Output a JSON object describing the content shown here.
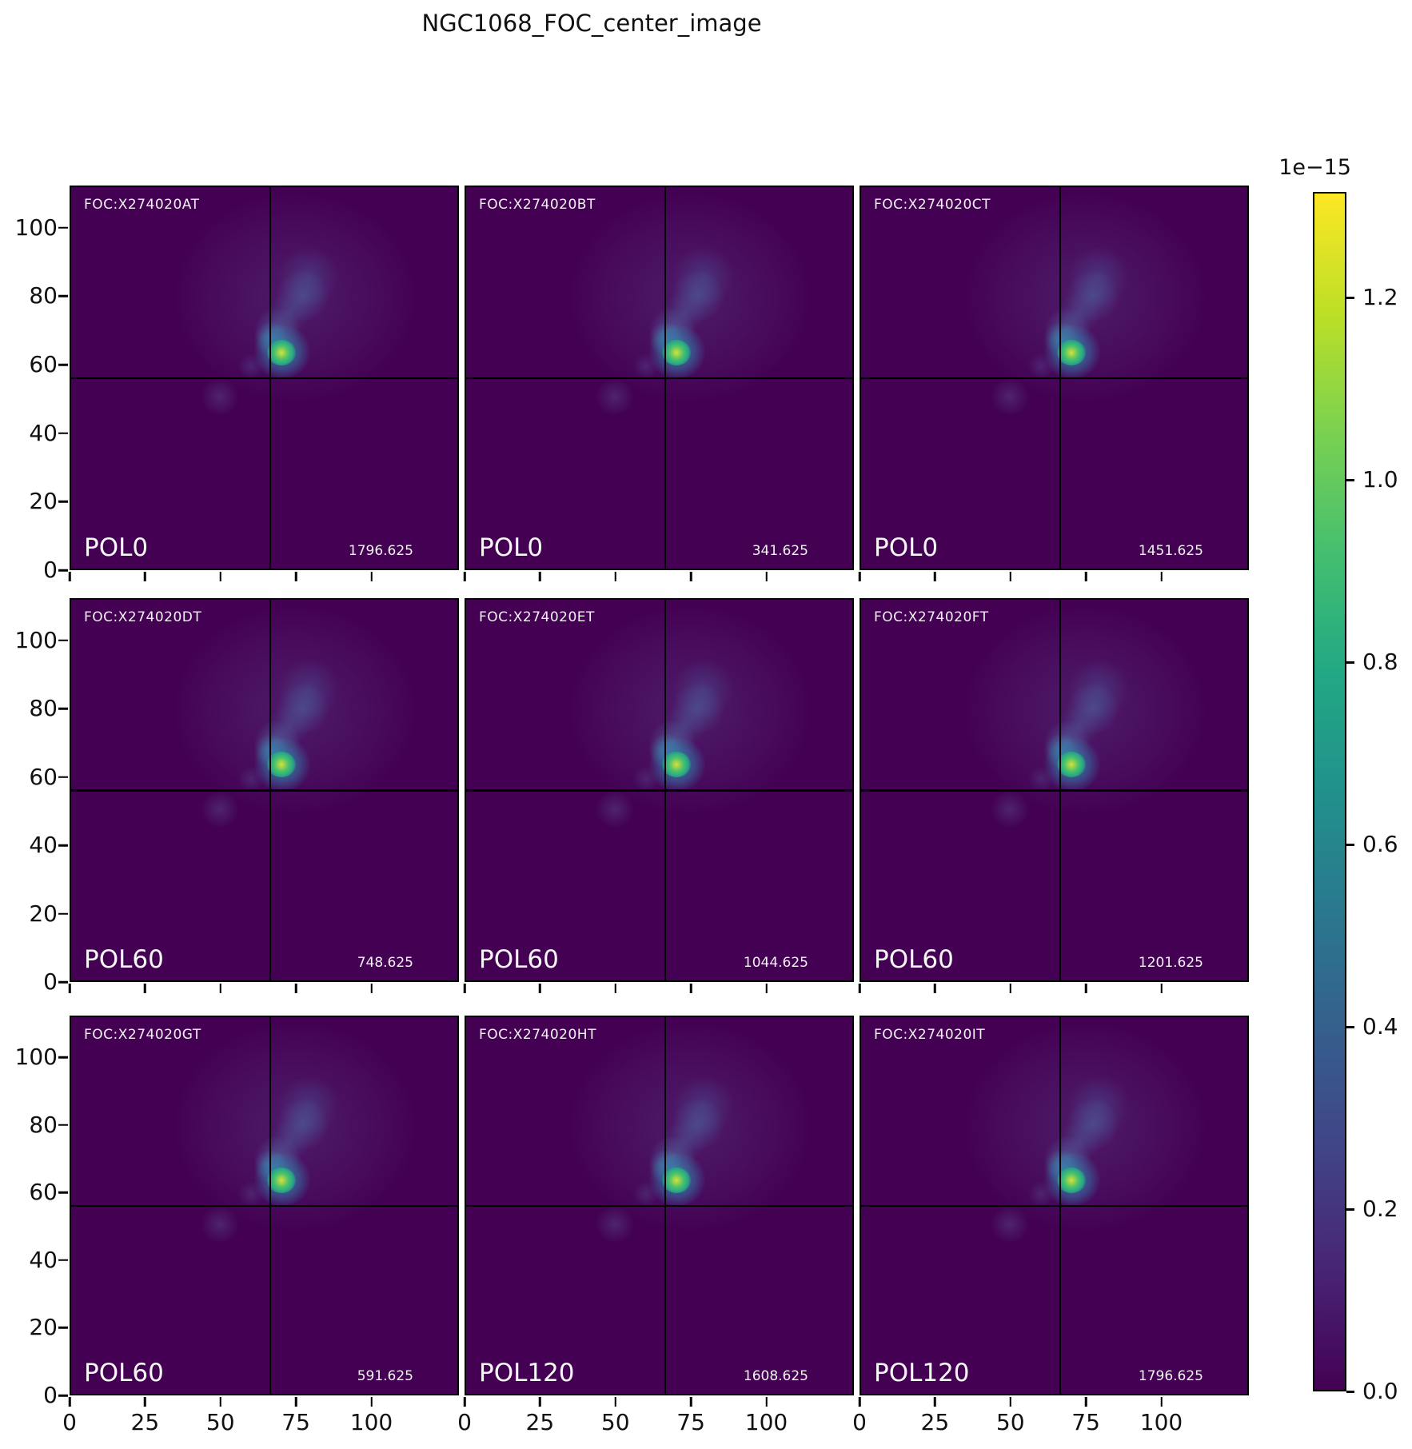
{
  "title": "NGC1068_FOC_center_image",
  "axes": {
    "x_tick_labels": [
      "0",
      "25",
      "50",
      "75",
      "100"
    ],
    "y_tick_labels": [
      "0",
      "20",
      "40",
      "60",
      "80",
      "100"
    ]
  },
  "colorbar": {
    "offset_label": "1e−15",
    "tick_labels": [
      "1.2",
      "1.0",
      "0.8",
      "0.6",
      "0.4",
      "0.2",
      "0.0"
    ]
  },
  "chart_data": {
    "type": "heatmap",
    "title": "NGC1068_FOC_center_image",
    "grid": "3 rows x 3 columns of FOC images, shared axes, single shared viridis colorbar",
    "colormap": "viridis",
    "panels": [
      {
        "dataset": "FOC:X274020AT",
        "filter": "POL0",
        "value": "1796.625"
      },
      {
        "dataset": "FOC:X274020BT",
        "filter": "POL0",
        "value": "341.625"
      },
      {
        "dataset": "FOC:X274020CT",
        "filter": "POL0",
        "value": "1451.625"
      },
      {
        "dataset": "FOC:X274020DT",
        "filter": "POL60",
        "value": "748.625"
      },
      {
        "dataset": "FOC:X274020ET",
        "filter": "POL60",
        "value": "1044.625"
      },
      {
        "dataset": "FOC:X274020FT",
        "filter": "POL60",
        "value": "1201.625"
      },
      {
        "dataset": "FOC:X274020GT",
        "filter": "POL60",
        "value": "591.625"
      },
      {
        "dataset": "FOC:X274020HT",
        "filter": "POL120",
        "value": "1608.625"
      },
      {
        "dataset": "FOC:X274020IT",
        "filter": "POL120",
        "value": "1796.625"
      }
    ],
    "x_ticks": [
      0,
      25,
      50,
      75,
      100
    ],
    "y_ticks": [
      0,
      20,
      40,
      60,
      80,
      100
    ],
    "x_range": [
      0,
      129
    ],
    "y_range": [
      0,
      112
    ],
    "crosshair": {
      "x": 66,
      "y": 56
    },
    "hotspot": {
      "x": 70,
      "y": 64,
      "note": "bright compact nucleus at same position in every panel"
    },
    "colorbar": {
      "scale_label": "1e−15",
      "ticks": [
        1.2,
        1.0,
        0.8,
        0.6,
        0.4,
        0.2,
        0.0
      ],
      "vmin": 0.0,
      "vmax": 1.32,
      "position": "right"
    },
    "colors": {
      "background": "#440154",
      "peak": "#fde725"
    }
  }
}
